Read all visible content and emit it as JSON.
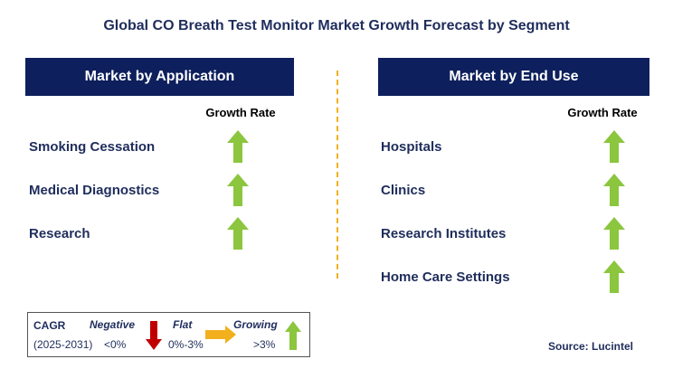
{
  "title": "Global CO Breath Test Monitor Market Growth Forecast by Segment",
  "left_panel": {
    "header": "Market by Application",
    "growth_rate_label": "Growth Rate",
    "items": [
      {
        "label": "Smoking Cessation",
        "trend": "growing"
      },
      {
        "label": "Medical Diagnostics",
        "trend": "growing"
      },
      {
        "label": "Research",
        "trend": "growing"
      }
    ]
  },
  "right_panel": {
    "header": "Market by End Use",
    "growth_rate_label": "Growth Rate",
    "items": [
      {
        "label": "Hospitals",
        "trend": "growing"
      },
      {
        "label": "Clinics",
        "trend": "growing"
      },
      {
        "label": "Research Institutes",
        "trend": "growing"
      },
      {
        "label": "Home Care Settings",
        "trend": "growing"
      }
    ]
  },
  "legend": {
    "cagr_label": "CAGR",
    "period": "(2025-2031)",
    "negative_label": "Negative",
    "negative_range": "<0%",
    "flat_label": "Flat",
    "flat_range": "0%-3%",
    "growing_label": "Growing",
    "growing_range": ">3%"
  },
  "source": "Source: Lucintel",
  "colors": {
    "header_bg": "#0d1f5c",
    "text_navy": "#1f2d5c",
    "growing": "#8cc63f",
    "negative": "#c00000",
    "flat": "#f2b01e",
    "divider": "#f2b01e"
  }
}
